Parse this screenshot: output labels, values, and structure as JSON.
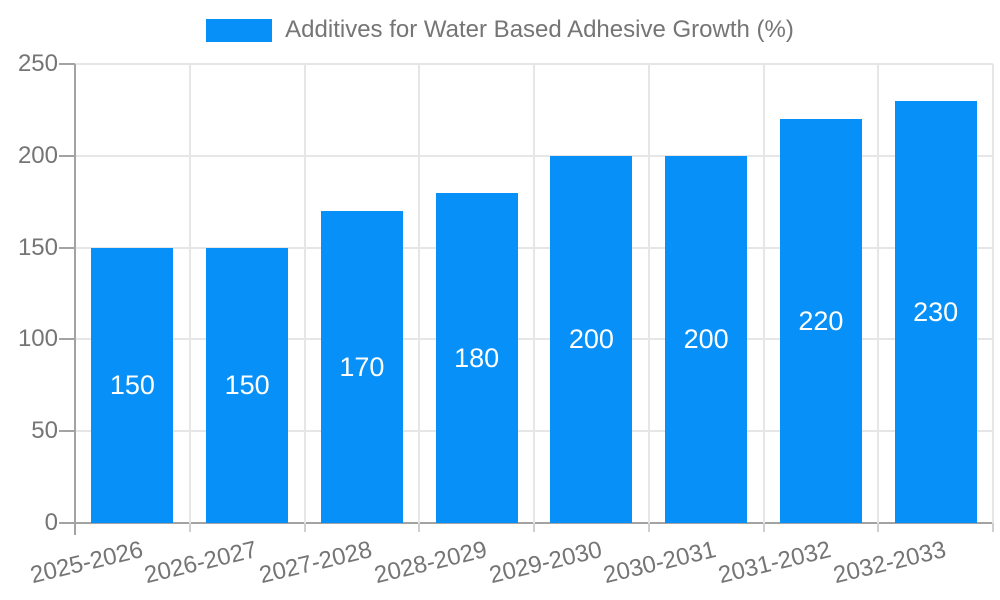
{
  "legend": {
    "label": "Additives for Water Based Adhesive Growth (%)"
  },
  "colors": {
    "bar": "#0790f8",
    "axis": "#a3a3a3",
    "grid": "#e6e6e6",
    "minor_tick": "#cfcfcf",
    "text": "#757575",
    "bar_label": "#ffffff",
    "background": "#ffffff"
  },
  "chart_data": {
    "type": "bar",
    "title": "Additives for Water Based Adhesive Growth (%)",
    "categories": [
      "2025-2026",
      "2026-2027",
      "2027-2028",
      "2028-2029",
      "2029-2030",
      "2030-2031",
      "2031-2032",
      "2032-2033"
    ],
    "values": [
      150,
      150,
      170,
      180,
      200,
      200,
      220,
      230
    ],
    "yticks": [
      0,
      50,
      100,
      150,
      200,
      250
    ],
    "ylim": [
      0,
      250
    ],
    "xlabel": "",
    "ylabel": "",
    "grid": true,
    "legend_position": "top",
    "value_labels": "inside-center",
    "x_label_rotation_deg": -13.5
  }
}
